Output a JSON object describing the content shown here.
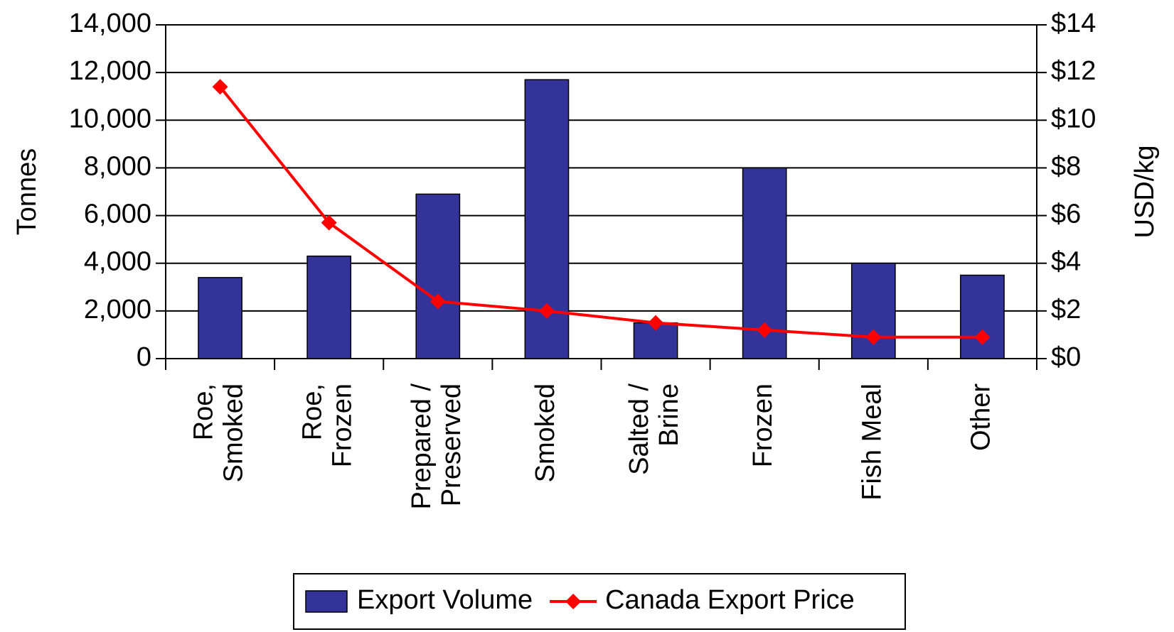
{
  "chart_data": {
    "type": "bar",
    "categories": [
      "Roe, Smoked",
      "Roe, Frozen",
      "Prepared / Preserved",
      "Smoked",
      "Salted / Brine",
      "Frozen",
      "Fish Meal",
      "Other"
    ],
    "series": [
      {
        "name": "Export Volume",
        "type": "bar",
        "color": "#333399",
        "values": [
          3400,
          4300,
          6900,
          11700,
          1500,
          8000,
          4000,
          3500
        ]
      },
      {
        "name": "Canada Export Price",
        "type": "line",
        "axis": "y2",
        "color": "#ff0000",
        "values": [
          11.4,
          5.7,
          2.4,
          2.0,
          1.5,
          1.2,
          0.9,
          0.9
        ]
      }
    ],
    "ylabel": "Tonnes",
    "y2label": "USD/kg",
    "ylim": [
      0,
      14000
    ],
    "yticks": [
      0,
      {
        "value": 2000,
        "label": "2,000"
      },
      {
        "value": 4000,
        "label": "4,000"
      },
      {
        "value": 6000,
        "label": "6,000"
      },
      {
        "value": 8000,
        "label": "8,000"
      },
      {
        "value": 10000,
        "label": "10,000"
      },
      {
        "value": 12000,
        "label": "12,000"
      },
      {
        "value": 14000,
        "label": "14,000"
      }
    ],
    "y2lim": [
      0,
      14
    ],
    "y2ticks": [
      {
        "value": 0,
        "label": "$0"
      },
      {
        "value": 2,
        "label": "$2"
      },
      {
        "value": 4,
        "label": "$4"
      },
      {
        "value": 6,
        "label": "$6"
      },
      {
        "value": 8,
        "label": "$8"
      },
      {
        "value": 10,
        "label": "$10"
      },
      {
        "value": 12,
        "label": "$12"
      },
      {
        "value": 14,
        "label": "$14"
      }
    ],
    "grid": true,
    "legend": "bottom"
  }
}
